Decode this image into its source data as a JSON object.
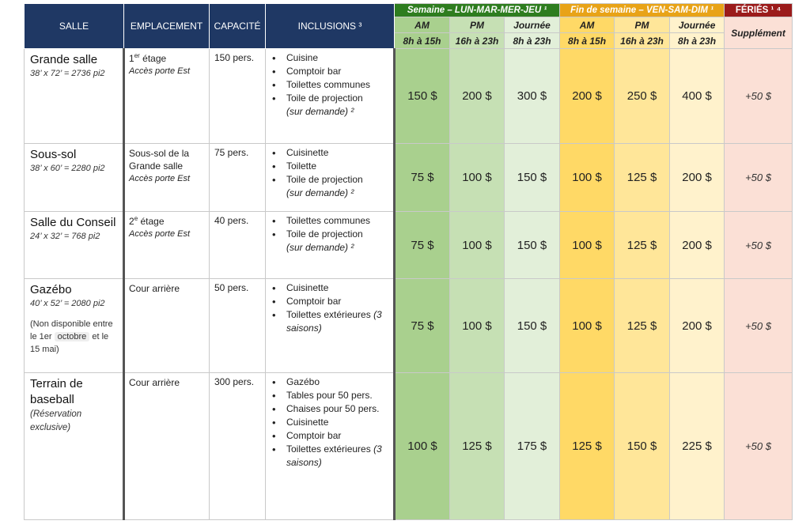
{
  "headers": {
    "salle": "SALLE",
    "emplacement": "EMPLACEMENT",
    "capacite": "CAPACITÉ",
    "inclusions": "INCLUSIONS ³",
    "semaine": "Semaine – LUN-MAR-MER-JEU ¹",
    "fin_semaine": "Fin de semaine – VEN-SAM-DIM ¹",
    "feries": "FÉRIÉS ¹ ⁴",
    "supplement": "Supplément",
    "am": "AM",
    "pm": "PM",
    "journee": "Journée",
    "am_hours": "8h à 15h",
    "pm_hours": "16h à 23h",
    "jour_hours": "8h à 23h"
  },
  "rows": [
    {
      "name": "Grande salle",
      "dim": "38’ x 72’ = 2736 pi2",
      "empl_floor": "1",
      "empl_floor_sup": "er",
      "empl_floor_rest": " étage",
      "empl_access": "Accès porte Est",
      "capacity": "150 pers.",
      "inclusions": [
        "Cuisine",
        "Comptoir bar",
        "Toilettes communes",
        "Toile de projection"
      ],
      "incl_note": "(sur demande) ²",
      "week": [
        "150 $",
        "200 $",
        "300 $"
      ],
      "weekend": [
        "200 $",
        "250 $",
        "400 $"
      ],
      "holiday": "+50 $"
    },
    {
      "name": "Sous-sol",
      "dim": "38’ x 60’ = 2280 pi2",
      "empl_text": "Sous-sol de la Grande salle",
      "empl_access": "Accès porte Est",
      "capacity": "75 pers.",
      "inclusions": [
        "Cuisinette",
        "Toilette",
        "Toile de projection"
      ],
      "incl_note": "(sur demande) ²",
      "week": [
        "75 $",
        "100 $",
        "150 $"
      ],
      "weekend": [
        "100 $",
        "125 $",
        "200 $"
      ],
      "holiday": "+50 $"
    },
    {
      "name": "Salle du Conseil",
      "dim": "24’ x 32’ = 768 pi2",
      "empl_floor": "2",
      "empl_floor_sup": "e",
      "empl_floor_rest": " étage",
      "empl_access": "Accès porte Est",
      "capacity": "40 pers.",
      "inclusions": [
        "Toilettes communes",
        "Toile de projection"
      ],
      "incl_note": "(sur demande) ²",
      "week": [
        "75 $",
        "100 $",
        "150 $"
      ],
      "weekend": [
        "100 $",
        "125 $",
        "200 $"
      ],
      "holiday": "+50 $"
    },
    {
      "name": "Gazébo",
      "dim": "40’ x 52’ = 2080 pi2",
      "note_a": "(Non disponible entre le 1er ",
      "note_chip": "octobre",
      "note_b": " et le 15 mai)",
      "empl_text": "Cour arrière",
      "capacity": "50 pers.",
      "inclusions": [
        "Cuisinette",
        "Comptoir bar",
        "Toilettes extérieures"
      ],
      "incl_note": "(3 saisons)",
      "week": [
        "75 $",
        "100 $",
        "150 $"
      ],
      "weekend": [
        "100 $",
        "125 $",
        "200 $"
      ],
      "holiday": "+50 $"
    },
    {
      "name": "Terrain de baseball",
      "resv": "(Réservation exclusive)",
      "empl_text": "Cour arrière",
      "capacity": "300 pers.",
      "inclusions": [
        "Gazébo",
        "Tables pour 50 pers.",
        "Chaises pour 50 pers.",
        "Cuisinette",
        "Comptoir bar",
        "Toilettes extérieures"
      ],
      "incl_note": "(3 saisons)",
      "week": [
        "100 $",
        "125 $",
        "175 $"
      ],
      "weekend": [
        "125 $",
        "150 $",
        "225 $"
      ],
      "holiday": "+50 $"
    }
  ]
}
